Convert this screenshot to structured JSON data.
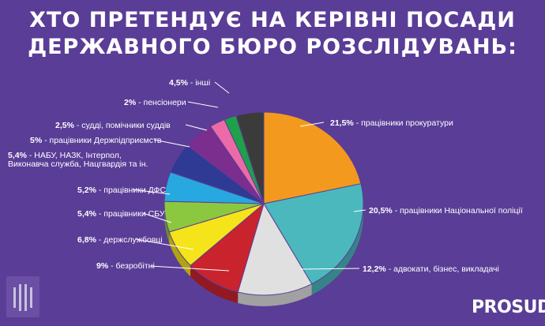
{
  "header": {
    "line1": "ХТО ПРЕТЕНДУЄ НА КЕРІВНІ ПОСАДИ",
    "line2": "ДЕРЖАВНОГО БЮРО РОЗСЛІДУВАНЬ:"
  },
  "brand": {
    "name": "PROSUD"
  },
  "chart_data": {
    "type": "pie",
    "title": "ХТО ПРЕТЕНДУЄ НА КЕРІВНІ ПОСАДИ ДЕРЖАВНОГО БЮРО РОЗСЛІДУВАНЬ:",
    "unit": "%",
    "slices": [
      {
        "label": "працівники прокуратури",
        "value": 21.5,
        "value_label": "21,5%",
        "color": "#f39a1e"
      },
      {
        "label": "працівники Національної поліції",
        "value": 20.5,
        "value_label": "20,5%",
        "color": "#4bb8bd"
      },
      {
        "label": "адвокати, бізнес, викладачі",
        "value": 12.2,
        "value_label": "12,2%",
        "color": "#e0e0e0"
      },
      {
        "label": "безробітні",
        "value": 9,
        "value_label": "9%",
        "color": "#c9232e"
      },
      {
        "label": "держслужбовці",
        "value": 6.8,
        "value_label": "6,8%",
        "color": "#f5e41a"
      },
      {
        "label": "працівники СБУ",
        "value": 5.4,
        "value_label": "5,4%",
        "color": "#8cc83f"
      },
      {
        "label": "працівники ДФС",
        "value": 5.2,
        "value_label": "5,2%",
        "color": "#27a8e0"
      },
      {
        "label": "НАБУ, НАЗК, Інтерпол, Виконавча служба, Нацгвардія та ін.",
        "label_lines": [
          "НАБУ, НАЗК, Інтерпол,",
          "Виконавча служба, Нацгвардія та ін."
        ],
        "value": 5.4,
        "value_label": "5,4%",
        "color": "#2e3a93"
      },
      {
        "label": "працівники Держпідприємств",
        "value": 5,
        "value_label": "5%",
        "color": "#7b2e8e"
      },
      {
        "label": "судді, помічники суддів",
        "value": 2.5,
        "value_label": "2,5%",
        "color": "#ec6aa8"
      },
      {
        "label": "пенсіонери",
        "value": 2,
        "value_label": "2%",
        "color": "#1fa04a"
      },
      {
        "label": "інші",
        "value": 4.5,
        "value_label": "4,5%",
        "color": "#3b3b3b"
      }
    ]
  }
}
